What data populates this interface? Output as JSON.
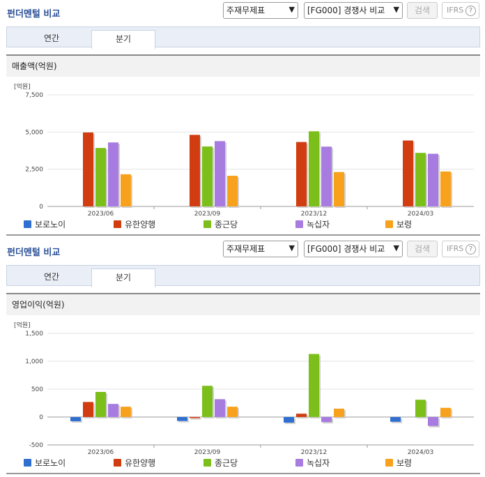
{
  "panels": [
    {
      "title": "펀더멘털 비교",
      "select1": "주재무제표",
      "select2": "[FG000] 경쟁사 비교",
      "search_label": "검색",
      "ifrs_label": "IFRS",
      "help_label": "?",
      "tabs": [
        {
          "label": "연간",
          "active": false
        },
        {
          "label": "분기",
          "active": true
        }
      ],
      "metric_label": "매출액(억원)"
    },
    {
      "title": "펀더멘털 비교",
      "select1": "주재무제표",
      "select2": "[FG000] 경쟁사 비교",
      "search_label": "검색",
      "ifrs_label": "IFRS",
      "help_label": "?",
      "tabs": [
        {
          "label": "연간",
          "active": false
        },
        {
          "label": "분기",
          "active": true
        }
      ],
      "metric_label": "영업이익(억원)"
    }
  ],
  "chart_data": [
    {
      "type": "bar",
      "unit_label": "[억원]",
      "categories": [
        "2023/06",
        "2023/09",
        "2023/12",
        "2024/03"
      ],
      "ylim": [
        0,
        7500
      ],
      "yticks": [
        0,
        2500,
        5000,
        7500
      ],
      "ytick_labels": [
        "0",
        "2,500",
        "5,000",
        "7,500"
      ],
      "grid": true,
      "legend_position": "bottom",
      "series": [
        {
          "name": "보로노이",
          "color": "#2f6fd0",
          "values": [
            0,
            0,
            0,
            0
          ]
        },
        {
          "name": "유한양행",
          "color": "#d13c10",
          "values": [
            4970,
            4810,
            4330,
            4430
          ]
        },
        {
          "name": "종근당",
          "color": "#7cbf1a",
          "values": [
            3930,
            4030,
            5050,
            3600
          ]
        },
        {
          "name": "녹십자",
          "color": "#a77bdf",
          "values": [
            4300,
            4390,
            4020,
            3540
          ]
        },
        {
          "name": "보령",
          "color": "#f7a11c",
          "values": [
            2160,
            2060,
            2310,
            2350
          ]
        }
      ]
    },
    {
      "type": "bar",
      "unit_label": "[억원]",
      "categories": [
        "2023/06",
        "2023/09",
        "2023/12",
        "2024/03"
      ],
      "ylim": [
        -500,
        1500
      ],
      "yticks": [
        -500,
        0,
        500,
        1000,
        1500
      ],
      "ytick_labels": [
        "-500",
        "0",
        "500",
        "1,000",
        "1,500"
      ],
      "grid": true,
      "legend_position": "bottom",
      "series": [
        {
          "name": "보로노이",
          "color": "#2f6fd0",
          "values": [
            -75,
            -70,
            -100,
            -85
          ]
        },
        {
          "name": "유한양행",
          "color": "#d13c10",
          "values": [
            270,
            -20,
            60,
            0
          ]
        },
        {
          "name": "종근당",
          "color": "#7cbf1a",
          "values": [
            450,
            560,
            1130,
            310
          ]
        },
        {
          "name": "녹십자",
          "color": "#a77bdf",
          "values": [
            235,
            320,
            -90,
            -160
          ]
        },
        {
          "name": "보령",
          "color": "#f7a11c",
          "values": [
            185,
            185,
            150,
            165
          ]
        }
      ]
    }
  ]
}
